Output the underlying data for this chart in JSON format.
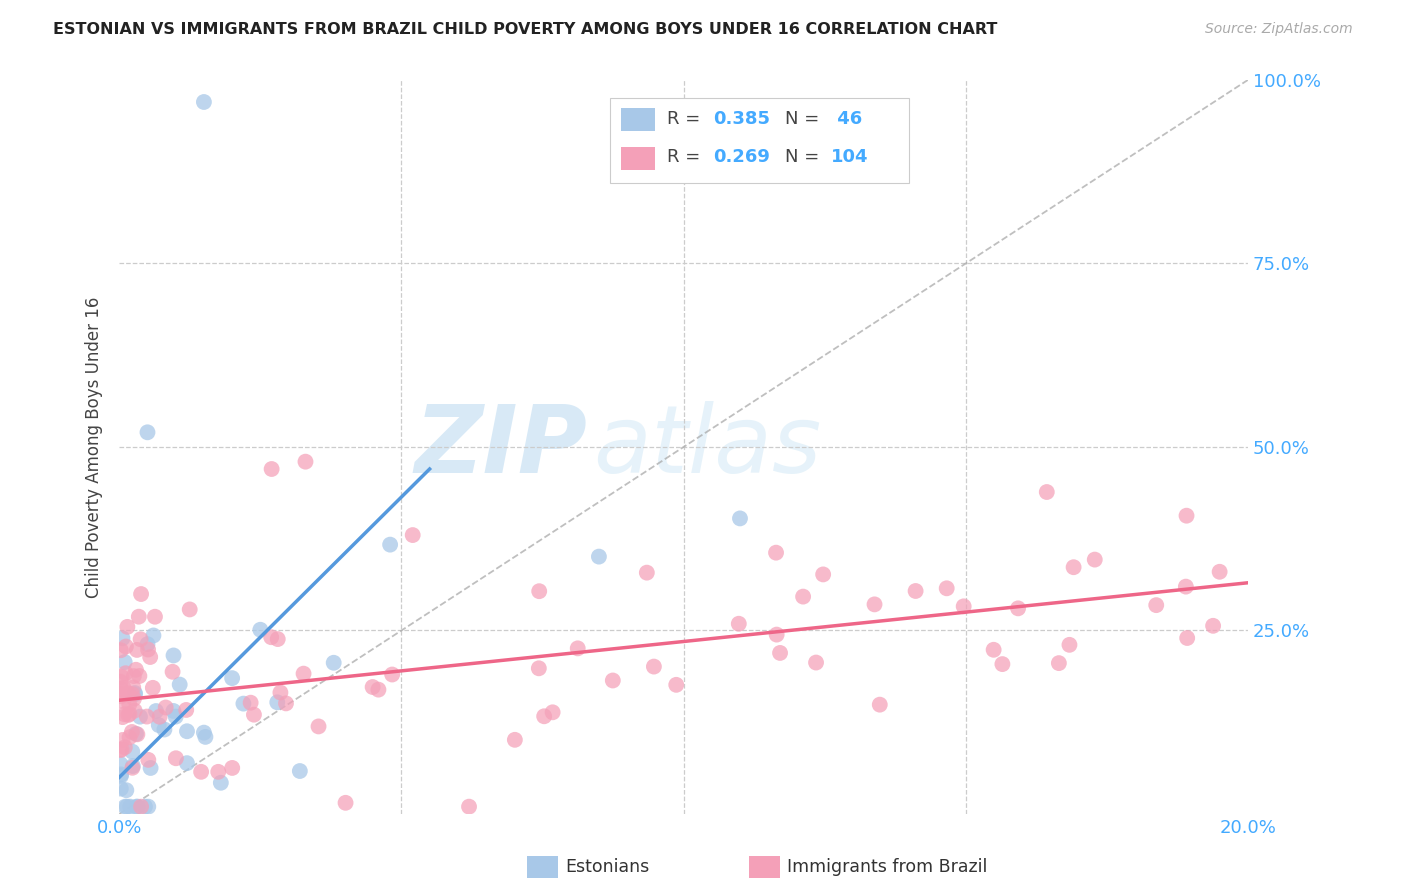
{
  "title": "ESTONIAN VS IMMIGRANTS FROM BRAZIL CHILD POVERTY AMONG BOYS UNDER 16 CORRELATION CHART",
  "source": "Source: ZipAtlas.com",
  "ylabel": "Child Poverty Among Boys Under 16",
  "color_estonian": "#a8c8e8",
  "color_brazil": "#f4a0b8",
  "color_line_estonian": "#5599dd",
  "color_line_brazil": "#ee6688",
  "color_diagonal": "#aaaaaa",
  "watermark_zip": "ZIP",
  "watermark_atlas": "atlas",
  "background_color": "#ffffff",
  "xlim": [
    0.0,
    0.2
  ],
  "ylim": [
    0.0,
    1.0
  ],
  "grid_color": "#cccccc",
  "tick_color": "#44aaff",
  "est_line_x0": 0.0,
  "est_line_y0": 0.05,
  "est_line_x1": 0.055,
  "est_line_y1": 0.47,
  "bra_line_x0": 0.0,
  "bra_line_y0": 0.155,
  "bra_line_x1": 0.2,
  "bra_line_y1": 0.315
}
